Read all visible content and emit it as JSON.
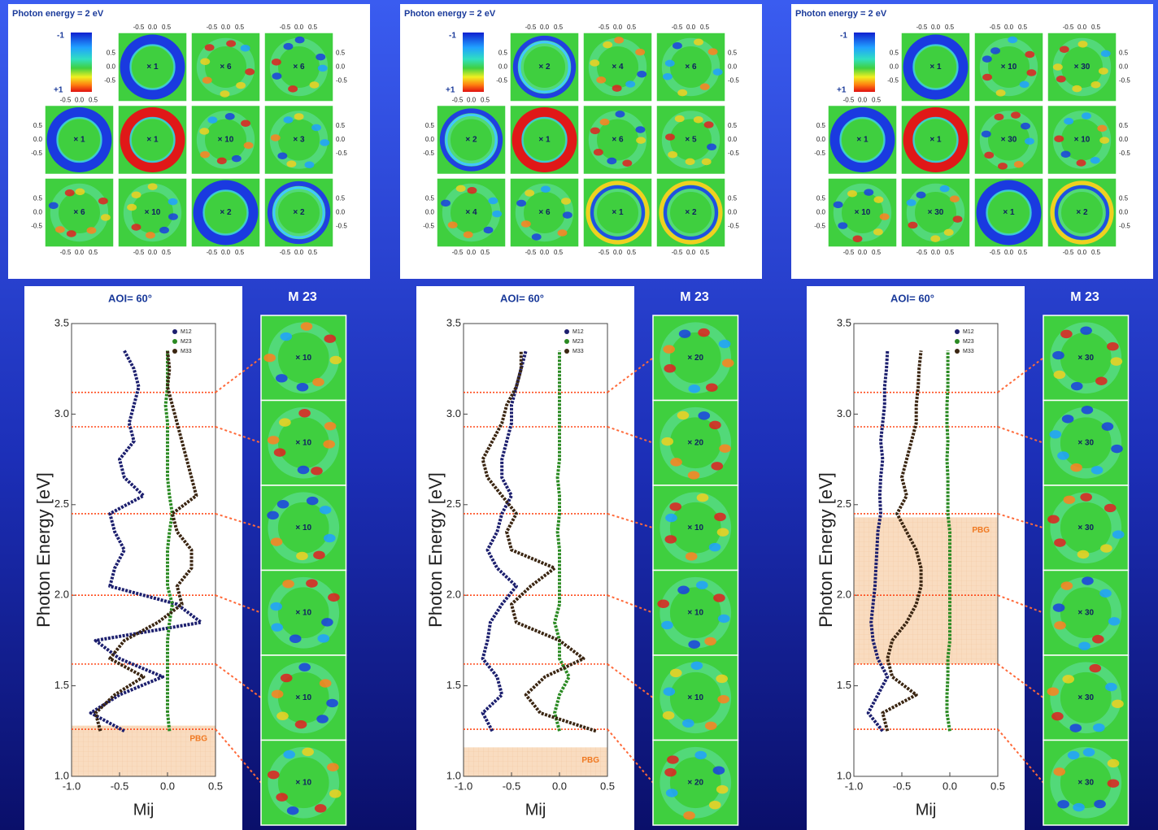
{
  "top_panels": [
    {
      "title": "Photon energy = 2 eV",
      "colorbar_labels": [
        "-1",
        "+1"
      ],
      "map_ticks": [
        -0.5,
        {
          "value": 0,
          "label": "0.0"
        },
        0.5
      ],
      "multipliers": [
        [
          null,
          "× 1",
          "× 6",
          "× 6"
        ],
        [
          "× 1",
          "× 1",
          "× 10",
          "× 3"
        ],
        [
          "× 6",
          "× 10",
          "× 2",
          "× 2"
        ]
      ]
    },
    {
      "title": "Photon energy = 2 eV",
      "colorbar_labels": [
        "-1",
        "+1"
      ],
      "map_ticks": [
        -0.5,
        {
          "value": 0,
          "label": "0.0"
        },
        0.5
      ],
      "multipliers": [
        [
          null,
          "× 2",
          "× 4",
          "× 6"
        ],
        [
          "× 2",
          "× 1",
          "× 6",
          "× 5"
        ],
        [
          "× 4",
          "× 6",
          "× 1",
          "× 2"
        ]
      ]
    },
    {
      "title": "Photon energy = 2 eV",
      "colorbar_labels": [
        "-1",
        "+1"
      ],
      "map_ticks": [
        -0.5,
        {
          "value": 0,
          "label": "0.0"
        },
        0.5
      ],
      "multipliers": [
        [
          null,
          "× 1",
          "× 10",
          "× 30"
        ],
        [
          "× 1",
          "× 1",
          "× 30",
          "× 10"
        ],
        [
          "× 10",
          "× 30",
          "× 1",
          "× 2"
        ]
      ]
    }
  ],
  "chart_data": [
    {
      "type": "line",
      "title": "AOI= 60°",
      "y_label": "Photon Energy [eV]",
      "x_label": "Mij",
      "xlim": [
        -1,
        0.5
      ],
      "xticks": [
        {
          "value": -1,
          "label": "-1.0"
        },
        -0.5,
        {
          "value": 0,
          "label": "0.0"
        },
        0.5
      ],
      "ylim": [
        1,
        3.5
      ],
      "yticks": [
        {
          "value": 1,
          "label": "1.0"
        },
        1.5,
        {
          "value": 2,
          "label": "2.0"
        },
        2.5,
        {
          "value": 3,
          "label": "3.0"
        },
        3.5
      ],
      "energies": [
        1.25,
        1.35,
        1.45,
        1.55,
        1.65,
        1.75,
        1.85,
        1.95,
        2.05,
        2.15,
        2.25,
        2.35,
        2.45,
        2.55,
        2.65,
        2.75,
        2.85,
        2.95,
        3.05,
        3.15,
        3.25,
        3.35
      ],
      "series": [
        {
          "name": "M12",
          "color": "#1c1f6e",
          "values": [
            -0.45,
            -0.8,
            -0.5,
            -0.05,
            -0.5,
            -0.75,
            0.35,
            0.1,
            -0.6,
            -0.55,
            -0.45,
            -0.55,
            -0.6,
            -0.25,
            -0.45,
            -0.5,
            -0.35,
            -0.4,
            -0.35,
            -0.3,
            -0.35,
            -0.45
          ]
        },
        {
          "name": "M23",
          "color": "#2a8a22",
          "values": [
            0.02,
            0,
            0,
            0,
            0,
            0,
            0.02,
            0.05,
            0,
            0,
            0,
            0.02,
            0.05,
            0.02,
            0,
            0,
            0,
            0,
            -0.02,
            0,
            0,
            0
          ]
        },
        {
          "name": "M33",
          "color": "#3b2612",
          "values": [
            -0.7,
            -0.75,
            -0.55,
            -0.25,
            -0.6,
            -0.45,
            -0.1,
            0.15,
            0.1,
            0.25,
            0.25,
            0.1,
            0.05,
            0.3,
            0.25,
            0.2,
            0.15,
            0.1,
            0.05,
            0,
            0.02,
            0
          ]
        }
      ],
      "marker_energies": [
        3.12,
        2.93,
        2.45,
        2.0,
        1.62,
        1.26
      ],
      "pbg_range": [
        1,
        1.28
      ],
      "pbg_label": "PBG",
      "map_title": "M 23",
      "map_multipliers": [
        "× 10",
        "× 10",
        "× 10",
        "× 10",
        "× 10",
        "× 10"
      ]
    },
    {
      "type": "line",
      "title": "AOI= 60°",
      "y_label": "Photon Energy [eV]",
      "x_label": "Mij",
      "xlim": [
        -1,
        0.5
      ],
      "xticks": [
        {
          "value": -1,
          "label": "-1.0"
        },
        -0.5,
        {
          "value": 0,
          "label": "0.0"
        },
        0.5
      ],
      "ylim": [
        1,
        3.5
      ],
      "yticks": [
        {
          "value": 1,
          "label": "1.0"
        },
        1.5,
        {
          "value": 2,
          "label": "2.0"
        },
        2.5,
        {
          "value": 3,
          "label": "3.0"
        },
        3.5
      ],
      "energies": [
        1.25,
        1.35,
        1.45,
        1.55,
        1.65,
        1.75,
        1.85,
        1.95,
        2.05,
        2.15,
        2.25,
        2.35,
        2.45,
        2.55,
        2.65,
        2.75,
        2.85,
        2.95,
        3.05,
        3.15,
        3.25,
        3.35
      ],
      "series": [
        {
          "name": "M12",
          "color": "#1c1f6e",
          "values": [
            -0.7,
            -0.8,
            -0.6,
            -0.65,
            -0.8,
            -0.75,
            -0.72,
            -0.6,
            -0.45,
            -0.65,
            -0.75,
            -0.65,
            -0.6,
            -0.5,
            -0.6,
            -0.6,
            -0.55,
            -0.5,
            -0.5,
            -0.45,
            -0.4,
            -0.35
          ]
        },
        {
          "name": "M23",
          "color": "#2a8a22",
          "values": [
            0,
            -0.05,
            0,
            0.1,
            0,
            0,
            -0.05,
            0,
            0,
            0,
            0,
            -0.02,
            0,
            0,
            -0.02,
            0,
            0,
            0,
            0,
            0,
            0,
            0
          ]
        },
        {
          "name": "M33",
          "color": "#3b2612",
          "values": [
            0.38,
            -0.2,
            -0.35,
            -0.15,
            0.25,
            0,
            -0.45,
            -0.5,
            -0.3,
            -0.05,
            -0.5,
            -0.55,
            -0.45,
            -0.6,
            -0.75,
            -0.8,
            -0.7,
            -0.6,
            -0.55,
            -0.45,
            -0.4,
            -0.4
          ]
        }
      ],
      "marker_energies": [
        3.12,
        2.93,
        2.45,
        2.0,
        1.62,
        1.26
      ],
      "pbg_range": [
        1,
        1.16
      ],
      "pbg_label": "PBG",
      "map_title": "M 23",
      "map_multipliers": [
        "× 20",
        "× 20",
        "× 10",
        "× 10",
        "× 10",
        "× 20"
      ]
    },
    {
      "type": "line",
      "title": "AOI= 60°",
      "y_label": "Photon Energy [eV]",
      "x_label": "Mij",
      "xlim": [
        -1,
        0.5
      ],
      "xticks": [
        {
          "value": -1,
          "label": "-1.0"
        },
        -0.5,
        {
          "value": 0,
          "label": "0.0"
        },
        0.5
      ],
      "ylim": [
        1,
        3.5
      ],
      "yticks": [
        {
          "value": 1,
          "label": "1.0"
        },
        1.5,
        {
          "value": 2,
          "label": "2.0"
        },
        2.5,
        {
          "value": 3,
          "label": "3.0"
        },
        3.5
      ],
      "energies": [
        1.25,
        1.35,
        1.45,
        1.55,
        1.65,
        1.75,
        1.85,
        1.95,
        2.05,
        2.15,
        2.25,
        2.35,
        2.45,
        2.55,
        2.65,
        2.75,
        2.85,
        2.95,
        3.05,
        3.15,
        3.25,
        3.35
      ],
      "series": [
        {
          "name": "M12",
          "color": "#1c1f6e",
          "values": [
            -0.7,
            -0.85,
            -0.75,
            -0.65,
            -0.75,
            -0.8,
            -0.82,
            -0.8,
            -0.78,
            -0.77,
            -0.76,
            -0.75,
            -0.72,
            -0.73,
            -0.72,
            -0.7,
            -0.72,
            -0.7,
            -0.68,
            -0.68,
            -0.66,
            -0.65
          ]
        },
        {
          "name": "M23",
          "color": "#2a8a22",
          "values": [
            0,
            -0.03,
            -0.03,
            -0.02,
            -0.02,
            0,
            0,
            0,
            0,
            0,
            0,
            0,
            -0.02,
            -0.02,
            -0.02,
            -0.03,
            -0.02,
            -0.03,
            -0.03,
            -0.02,
            -0.02,
            -0.02
          ]
        },
        {
          "name": "M33",
          "color": "#3b2612",
          "values": [
            -0.65,
            -0.7,
            -0.35,
            -0.6,
            -0.65,
            -0.6,
            -0.45,
            -0.35,
            -0.3,
            -0.3,
            -0.35,
            -0.45,
            -0.55,
            -0.45,
            -0.5,
            -0.45,
            -0.4,
            -0.35,
            -0.35,
            -0.33,
            -0.32,
            -0.3
          ]
        }
      ],
      "marker_energies": [
        3.12,
        2.93,
        2.45,
        2.0,
        1.62,
        1.26
      ],
      "pbg_range": [
        1.62,
        2.43
      ],
      "pbg_label": "PBG",
      "map_title": "M 23",
      "map_multipliers": [
        "× 30",
        "× 30",
        "× 30",
        "× 30",
        "× 30",
        "× 30"
      ]
    }
  ]
}
